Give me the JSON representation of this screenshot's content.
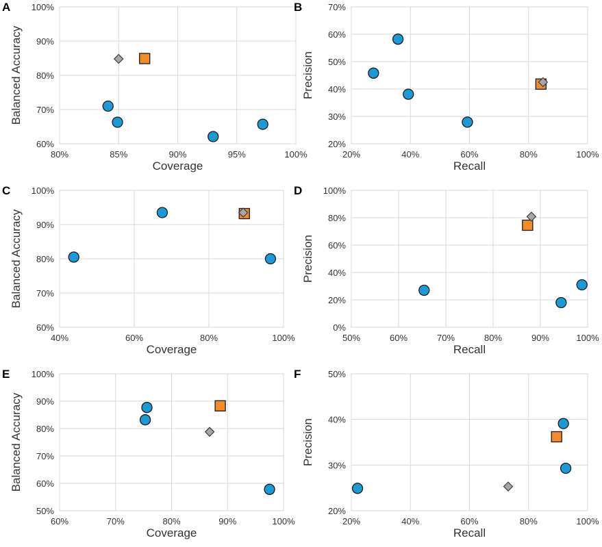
{
  "legend_colors": {
    "circle": "#1b9ad6",
    "square": "#f28c28",
    "diamond": "#a6a6a6",
    "outline": "#1a1a1a"
  },
  "chart_data": [
    {
      "id": "A",
      "type": "scatter",
      "xlabel": "Coverage",
      "ylabel": "Balanced Accuracy",
      "xlim": [
        0.8,
        1.0
      ],
      "ylim": [
        0.6,
        1.0
      ],
      "xticks": [
        0.8,
        0.85,
        0.9,
        0.95,
        1.0
      ],
      "yticks": [
        0.6,
        0.7,
        0.8,
        0.9,
        1.0
      ],
      "xtick_labels": [
        "80%",
        "85%",
        "90%",
        "95%",
        "100%"
      ],
      "ytick_labels": [
        "60%",
        "70%",
        "80%",
        "90%",
        "100%"
      ],
      "series": [
        {
          "marker": "circle",
          "points": [
            [
              0.841,
              0.71
            ],
            [
              0.849,
              0.663
            ],
            [
              0.93,
              0.621
            ],
            [
              0.972,
              0.657
            ]
          ]
        },
        {
          "marker": "square",
          "points": [
            [
              0.872,
              0.849
            ]
          ]
        },
        {
          "marker": "diamond",
          "points": [
            [
              0.85,
              0.848
            ]
          ]
        }
      ]
    },
    {
      "id": "B",
      "type": "scatter",
      "xlabel": "Recall",
      "ylabel": "Precision",
      "xlim": [
        0.2,
        1.0
      ],
      "ylim": [
        0.2,
        0.7
      ],
      "xticks": [
        0.2,
        0.4,
        0.6,
        0.8,
        1.0
      ],
      "yticks": [
        0.2,
        0.3,
        0.4,
        0.5,
        0.6,
        0.7
      ],
      "xtick_labels": [
        "20%",
        "40%",
        "60%",
        "80%",
        "100%"
      ],
      "ytick_labels": [
        "20%",
        "30%",
        "40%",
        "50%",
        "60%",
        "70%"
      ],
      "series": [
        {
          "marker": "circle",
          "points": [
            [
              0.275,
              0.458
            ],
            [
              0.358,
              0.582
            ],
            [
              0.393,
              0.381
            ],
            [
              0.593,
              0.279
            ]
          ]
        },
        {
          "marker": "square",
          "points": [
            [
              0.842,
              0.418
            ]
          ]
        },
        {
          "marker": "diamond",
          "points": [
            [
              0.849,
              0.425
            ]
          ]
        }
      ]
    },
    {
      "id": "C",
      "type": "scatter",
      "xlabel": "Coverage",
      "ylabel": "Balanced Accuracy",
      "xlim": [
        0.4,
        1.0
      ],
      "ylim": [
        0.6,
        1.0
      ],
      "xticks": [
        0.4,
        0.6,
        0.8,
        1.0
      ],
      "yticks": [
        0.6,
        0.7,
        0.8,
        0.9,
        1.0
      ],
      "xtick_labels": [
        "40%",
        "60%",
        "80%",
        "100%"
      ],
      "ytick_labels": [
        "60%",
        "70%",
        "80%",
        "90%",
        "100%"
      ],
      "series": [
        {
          "marker": "circle",
          "points": [
            [
              0.438,
              0.805
            ],
            [
              0.675,
              0.935
            ],
            [
              0.965,
              0.8
            ]
          ]
        },
        {
          "marker": "square",
          "points": [
            [
              0.895,
              0.932
            ]
          ]
        },
        {
          "marker": "diamond",
          "points": [
            [
              0.892,
              0.935
            ]
          ]
        }
      ]
    },
    {
      "id": "D",
      "type": "scatter",
      "xlabel": "Recall",
      "ylabel": "Precision",
      "xlim": [
        0.5,
        1.0
      ],
      "ylim": [
        0.0,
        1.0
      ],
      "xticks": [
        0.5,
        0.6,
        0.7,
        0.8,
        0.9,
        1.0
      ],
      "yticks": [
        0.0,
        0.2,
        0.4,
        0.6,
        0.8,
        1.0
      ],
      "xtick_labels": [
        "50%",
        "60%",
        "70%",
        "80%",
        "90%",
        "100%"
      ],
      "ytick_labels": [
        "0%",
        "20%",
        "40%",
        "60%",
        "80%",
        "100%"
      ],
      "series": [
        {
          "marker": "circle",
          "points": [
            [
              0.654,
              0.27
            ],
            [
              0.944,
              0.18
            ],
            [
              0.988,
              0.31
            ]
          ]
        },
        {
          "marker": "square",
          "points": [
            [
              0.873,
              0.745
            ]
          ]
        },
        {
          "marker": "diamond",
          "points": [
            [
              0.881,
              0.808
            ]
          ]
        }
      ]
    },
    {
      "id": "E",
      "type": "scatter",
      "xlabel": "Coverage",
      "ylabel": "Balanced Accuracy",
      "xlim": [
        0.6,
        1.0
      ],
      "ylim": [
        0.5,
        1.0
      ],
      "xticks": [
        0.6,
        0.7,
        0.8,
        0.9,
        1.0
      ],
      "yticks": [
        0.5,
        0.6,
        0.7,
        0.8,
        0.9,
        1.0
      ],
      "xtick_labels": [
        "60%",
        "70%",
        "80%",
        "90%",
        "100%"
      ],
      "ytick_labels": [
        "50%",
        "60%",
        "70%",
        "80%",
        "90%",
        "100%"
      ],
      "series": [
        {
          "marker": "circle",
          "points": [
            [
              0.756,
              0.877
            ],
            [
              0.753,
              0.832
            ],
            [
              0.975,
              0.578
            ]
          ]
        },
        {
          "marker": "square",
          "points": [
            [
              0.887,
              0.883
            ]
          ]
        },
        {
          "marker": "diamond",
          "points": [
            [
              0.868,
              0.788
            ]
          ]
        }
      ]
    },
    {
      "id": "F",
      "type": "scatter",
      "xlabel": "Recall",
      "ylabel": "Precision",
      "xlim": [
        0.2,
        1.0
      ],
      "ylim": [
        0.2,
        0.5
      ],
      "xticks": [
        0.2,
        0.4,
        0.6,
        0.8,
        1.0
      ],
      "yticks": [
        0.2,
        0.3,
        0.4,
        0.5
      ],
      "xtick_labels": [
        "20%",
        "40%",
        "60%",
        "80%",
        "100%"
      ],
      "ytick_labels": [
        "20%",
        "30%",
        "40%",
        "50%"
      ],
      "series": [
        {
          "marker": "circle",
          "points": [
            [
              0.221,
              0.249
            ],
            [
              0.918,
              0.391
            ],
            [
              0.926,
              0.293
            ]
          ]
        },
        {
          "marker": "square",
          "points": [
            [
              0.895,
              0.362
            ]
          ]
        },
        {
          "marker": "diamond",
          "points": [
            [
              0.731,
              0.253
            ]
          ]
        }
      ]
    }
  ]
}
